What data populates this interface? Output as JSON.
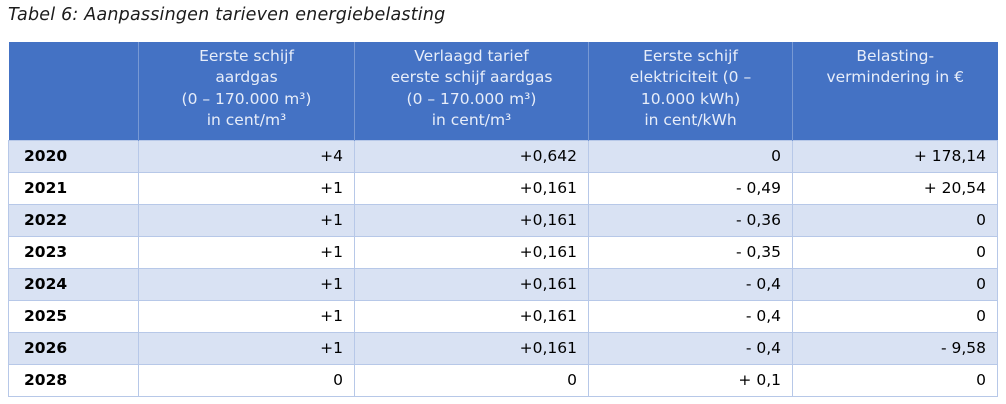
{
  "page": {
    "title": "Tabel 6: Aanpassingen tarieven energiebelasting"
  },
  "colors": {
    "header_bg": "#4472C4",
    "header_text": "#E7EDF9",
    "row_shaded_bg": "#D9E2F3",
    "row_plain_bg": "#FFFFFF",
    "border": "#B7C8E8",
    "body_text": "#000000"
  },
  "table": {
    "columns": [
      {
        "label": ""
      },
      {
        "label": "Eerste schijf\naardgas\n(0 – 170.000 m³)\nin cent/m³"
      },
      {
        "label": "Verlaagd tarief\neerste schijf aardgas\n(0 – 170.000 m³)\nin cent/m³"
      },
      {
        "label": "Eerste schijf\nelektriciteit (0 –\n10.000 kWh)\nin cent/kWh"
      },
      {
        "label": "Belasting-\nvermindering in €"
      }
    ],
    "rows": [
      {
        "year": "2020",
        "values": [
          "+4",
          "+0,642",
          "0",
          "+ 178,14"
        ]
      },
      {
        "year": "2021",
        "values": [
          "+1",
          "+0,161",
          "- 0,49",
          "+ 20,54"
        ]
      },
      {
        "year": "2022",
        "values": [
          "+1",
          "+0,161",
          "- 0,36",
          "0"
        ]
      },
      {
        "year": "2023",
        "values": [
          "+1",
          "+0,161",
          "- 0,35",
          "0"
        ]
      },
      {
        "year": "2024",
        "values": [
          "+1",
          "+0,161",
          "- 0,4",
          "0"
        ]
      },
      {
        "year": "2025",
        "values": [
          "+1",
          "+0,161",
          "- 0,4",
          "0"
        ]
      },
      {
        "year": "2026",
        "values": [
          "+1",
          "+0,161",
          "- 0,4",
          "- 9,58"
        ]
      },
      {
        "year": "2028",
        "values": [
          "0",
          "0",
          "+ 0,1",
          "0"
        ]
      }
    ]
  }
}
